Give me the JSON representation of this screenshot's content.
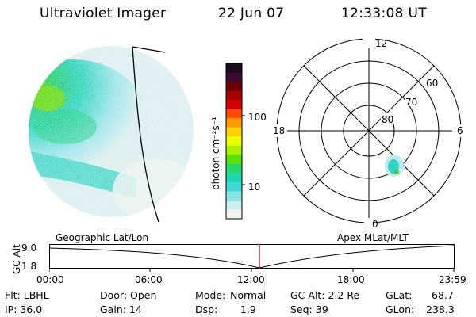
{
  "header": {
    "title": "Ultraviolet Imager",
    "date": "22 Jun 07",
    "time": "12:33:08 UT"
  },
  "colorbar": {
    "unit_label": "photon cm⁻²s⁻¹",
    "ticks": [
      "100",
      "10"
    ],
    "colors": [
      "#1a0a1a",
      "#3b0a33",
      "#6b0000",
      "#a80000",
      "#d80000",
      "#ff4a00",
      "#ff9a00",
      "#ffd000",
      "#e8ff00",
      "#a8f000",
      "#5ae000",
      "#26d86a",
      "#20d6b0",
      "#3fd8d8",
      "#8ae4e8",
      "#c8eef0",
      "#ecf4f4"
    ]
  },
  "polar_plot": {
    "mlt_labels": [
      "12",
      "18",
      "6",
      "0"
    ],
    "lat_labels": [
      "60",
      "70",
      "80"
    ]
  },
  "timeline": {
    "left_label": "Geographic Lat/Lon",
    "right_label": "Apex MLat/MLT",
    "axis_label": "GC Alt",
    "y_ticks": [
      "9.0",
      "1.8"
    ],
    "x_ticks": [
      "00:00",
      "06:00",
      "12:00",
      "18:00",
      "23:59"
    ],
    "marker_color": "#e00000"
  },
  "status": {
    "col1": [
      "Flt: LBHL",
      "IP: 36.0"
    ],
    "col2": [
      "Door: Open",
      "Gain: 14"
    ],
    "col3a": [
      "Mode:",
      "Dsp:"
    ],
    "col3b": [
      "Normal",
      "1.9"
    ],
    "col4": [
      "GC Alt: 2.2 Re",
      "Seq: 39"
    ],
    "col5a": [
      "GLat:",
      "GLon:"
    ],
    "col5b": [
      "68.7",
      "238.3"
    ]
  }
}
